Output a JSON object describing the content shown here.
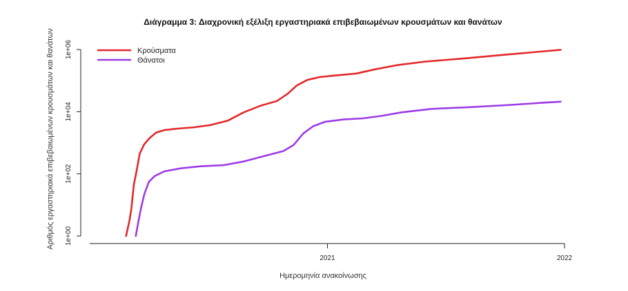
{
  "chart_data": {
    "type": "line",
    "title": "Διάγραμμα 3: Διαχρονική εξέλιξη εργαστηριακά επιβεβαιωμένων κρουσμάτων και θανάτων",
    "xlabel": "Ημερομηνία ανακοίνωσης",
    "ylabel": "Αριθμός εργαστηριακά επιβεβαιωμένων κρουσμάτων και θανάτων",
    "y_scale": "log10",
    "ylim": [
      1,
      1000000
    ],
    "xlim": [
      "2020-01-01",
      "2022-01-01"
    ],
    "x_ticks": [
      {
        "date": "2021-01-01",
        "label": "2021"
      },
      {
        "date": "2022-01-01",
        "label": "2022"
      }
    ],
    "y_ticks": [
      {
        "value": 1,
        "label": "1e+00"
      },
      {
        "value": 100,
        "label": "1e+02"
      },
      {
        "value": 10000,
        "label": "1e+04"
      },
      {
        "value": 1000000,
        "label": "1e+06"
      }
    ],
    "grid": false,
    "legend_position": "top-left",
    "series": [
      {
        "name": "Κρούσματα",
        "color": "#e3272a",
        "points": [
          [
            "2020-02-26",
            1
          ],
          [
            "2020-03-02",
            3
          ],
          [
            "2020-03-05",
            7
          ],
          [
            "2020-03-09",
            45
          ],
          [
            "2020-03-13",
            120
          ],
          [
            "2020-03-18",
            450
          ],
          [
            "2020-03-25",
            900
          ],
          [
            "2020-04-02",
            1400
          ],
          [
            "2020-04-12",
            2100
          ],
          [
            "2020-04-25",
            2550
          ],
          [
            "2020-05-15",
            2850
          ],
          [
            "2020-06-10",
            3150
          ],
          [
            "2020-07-05",
            3700
          ],
          [
            "2020-08-01",
            5200
          ],
          [
            "2020-08-25",
            9500
          ],
          [
            "2020-09-20",
            15500
          ],
          [
            "2020-10-15",
            22000
          ],
          [
            "2020-11-01",
            38000
          ],
          [
            "2020-11-15",
            70000
          ],
          [
            "2020-12-01",
            105000
          ],
          [
            "2020-12-20",
            130000
          ],
          [
            "2021-01-15",
            147000
          ],
          [
            "2021-02-15",
            170000
          ],
          [
            "2021-03-15",
            230000
          ],
          [
            "2021-04-20",
            320000
          ],
          [
            "2021-06-01",
            410000
          ],
          [
            "2021-08-01",
            520000
          ],
          [
            "2021-10-01",
            680000
          ],
          [
            "2021-12-01",
            880000
          ],
          [
            "2021-12-26",
            980000
          ]
        ]
      },
      {
        "name": "Θάνατοι",
        "color": "#9b3be8",
        "points": [
          [
            "2020-03-12",
            1
          ],
          [
            "2020-03-16",
            3
          ],
          [
            "2020-03-20",
            8
          ],
          [
            "2020-03-25",
            22
          ],
          [
            "2020-04-01",
            55
          ],
          [
            "2020-04-10",
            85
          ],
          [
            "2020-04-25",
            120
          ],
          [
            "2020-05-20",
            150
          ],
          [
            "2020-06-20",
            175
          ],
          [
            "2020-07-25",
            190
          ],
          [
            "2020-08-25",
            250
          ],
          [
            "2020-09-25",
            370
          ],
          [
            "2020-10-25",
            540
          ],
          [
            "2020-11-10",
            850
          ],
          [
            "2020-11-25",
            2000
          ],
          [
            "2020-12-10",
            3400
          ],
          [
            "2020-12-28",
            4700
          ],
          [
            "2021-01-25",
            5600
          ],
          [
            "2021-02-25",
            6100
          ],
          [
            "2021-03-25",
            7300
          ],
          [
            "2021-04-25",
            9500
          ],
          [
            "2021-06-10",
            12300
          ],
          [
            "2021-08-10",
            14000
          ],
          [
            "2021-10-10",
            16500
          ],
          [
            "2021-12-01",
            19500
          ],
          [
            "2021-12-26",
            21000
          ]
        ]
      }
    ]
  }
}
